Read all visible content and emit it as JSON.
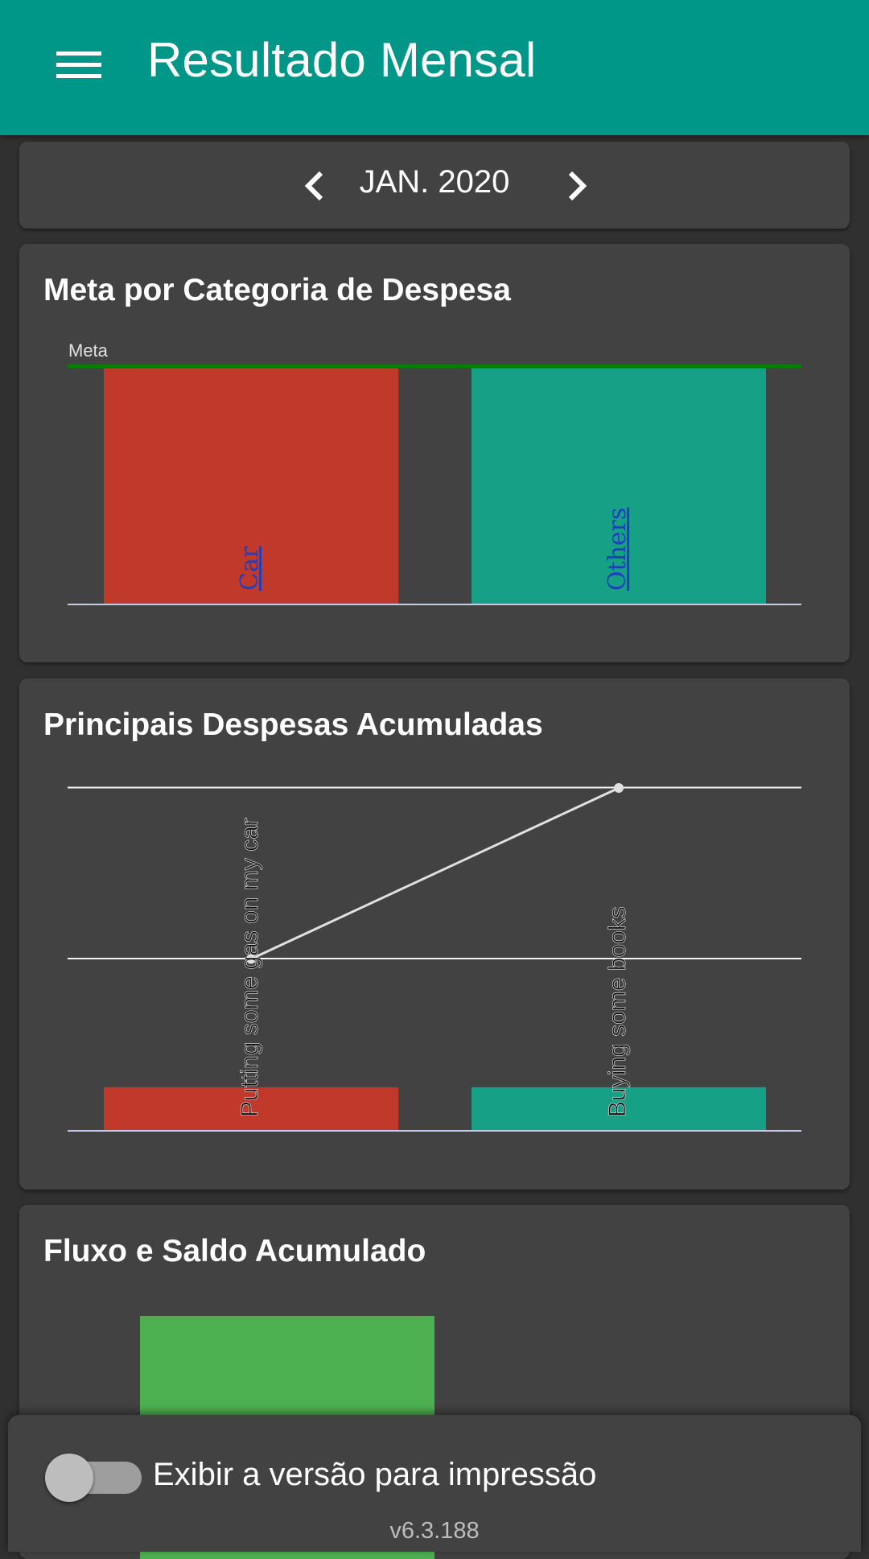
{
  "header": {
    "title": "Resultado Mensal",
    "menu_icon": "hamburger-menu-icon"
  },
  "month_nav": {
    "label": "JAN. 2020",
    "prev_icon": "chevron-left-icon",
    "next_icon": "chevron-right-icon"
  },
  "cards": {
    "goal_title": "Meta por Categoria de Despesa",
    "expenses_title": "Principais Despesas Acumuladas",
    "flow_title": "Fluxo e Saldo Acumulado"
  },
  "colors": {
    "appbar": "#009688",
    "background": "#303030",
    "card": "#424242",
    "car": "#c0392b",
    "others": "#16a085",
    "goal_line": "#008000",
    "flow_bar": "#4caf50"
  },
  "chart_data": [
    {
      "type": "bar",
      "annotation": "Meta",
      "categories": [
        "Car",
        "Others"
      ],
      "values": [
        1,
        1
      ],
      "goal": 1,
      "ylim": [
        0,
        1
      ],
      "grid": false,
      "legend": "none"
    },
    {
      "type": "bar",
      "categories": [
        "Putting some gas on my car",
        "Buying some books"
      ],
      "values": [
        0.25,
        0.25
      ],
      "line": [
        1,
        2
      ],
      "ylim": [
        0,
        2
      ],
      "grid": true,
      "legend": "none"
    },
    {
      "type": "bar",
      "categories": [
        ""
      ],
      "values": [
        1
      ],
      "legend": "none"
    }
  ],
  "footer": {
    "print_toggle_label": "Exibir a versão para impressão",
    "print_toggle_on": false,
    "version": "v6.3.188"
  }
}
